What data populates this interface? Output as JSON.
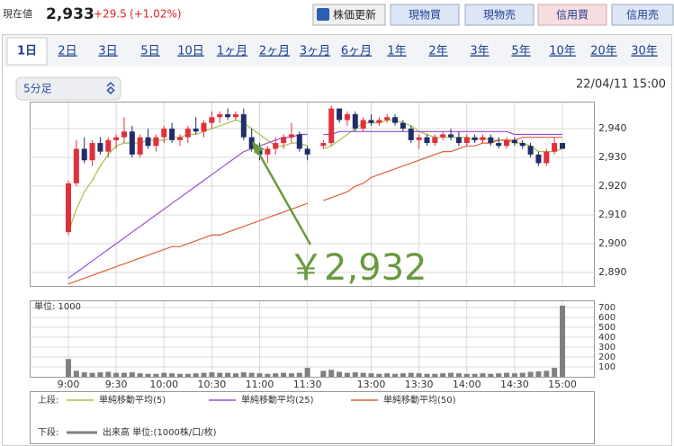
{
  "header": {
    "label": "現在値",
    "price": "2,933",
    "change": "+29.5",
    "change_pct": "(+1.02%)"
  },
  "buttons": [
    "株価更新",
    "現物買",
    "現物売",
    "信用買",
    "信用売"
  ],
  "tabs": [
    "1日",
    "2日",
    "3日",
    "5日",
    "10日",
    "1ヶ月",
    "2ヶ月",
    "3ヶ月",
    "6ヶ月",
    "1年",
    "2年",
    "3年",
    "5年",
    "10年",
    "20年",
    "30年"
  ],
  "interval": "5分足",
  "datetime": "22/04/11 15:00",
  "annotation": "￥2,932",
  "chart_data": [
    {
      "type": "candlestick",
      "legend_label": "上段:",
      "up_color": "#e0303c",
      "down_color": "#1f2d6b",
      "ylim": [
        2885.3,
        2949.4
      ],
      "yticks": [
        {
          "value": 2890,
          "label": "2,890"
        },
        {
          "value": 2900,
          "label": "2,900"
        },
        {
          "value": 2910,
          "label": "2,910"
        },
        {
          "value": 2920,
          "label": "2,920"
        },
        {
          "value": 2930,
          "label": "2,930"
        },
        {
          "value": 2940,
          "label": "2,940"
        }
      ],
      "open": [
        2904,
        2921,
        2933,
        2929,
        2935,
        2932,
        2936,
        2937,
        2939,
        2931,
        2937,
        2934,
        2937,
        2940,
        2936,
        2937,
        2940,
        2939,
        2942,
        2944,
        2945,
        2944,
        2945,
        2937,
        2933,
        2931,
        2933,
        2935,
        2937,
        2938,
        2933,
        null,
        2934,
        2935,
        2947,
        2943,
        2945,
        2940,
        2943,
        2942,
        2943,
        2944,
        2942,
        2940,
        2936,
        2937,
        2935,
        2937,
        2938,
        2937,
        2935,
        2937,
        2936,
        2937,
        2935,
        2934,
        2936,
        2935,
        2934,
        2931,
        2928,
        2932,
        2935
      ],
      "high": [
        2922,
        2936,
        2937,
        2936,
        2937,
        2937,
        2938,
        2944,
        2941,
        2938,
        2940,
        2938,
        2941,
        2942,
        2938,
        2941,
        2944,
        2943,
        2946,
        2946,
        2947,
        2946,
        2947,
        2940,
        2935,
        2934,
        2937,
        2938,
        2942,
        2939,
        2934,
        null,
        2936,
        2948,
        2947,
        2946,
        2946,
        2944,
        2945,
        2944,
        2945,
        2945,
        2943,
        2941,
        2938,
        2938,
        2938,
        2939,
        2940,
        2939,
        2938,
        2938,
        2938,
        2938,
        2937,
        2937,
        2937,
        2936,
        2935,
        2932,
        2933,
        2937,
        2935
      ],
      "low": [
        2903,
        2920,
        2928,
        2927,
        2931,
        2930,
        2933,
        2935,
        2930,
        2930,
        2933,
        2932,
        2935,
        2935,
        2934,
        2935,
        2938,
        2937,
        2940,
        2942,
        2943,
        2943,
        2936,
        2932,
        2929,
        2928,
        2931,
        2933,
        2935,
        2932,
        2929,
        null,
        2933,
        2934,
        2942,
        2941,
        2939,
        2939,
        2941,
        2941,
        2942,
        2941,
        2939,
        2935,
        2933,
        2934,
        2934,
        2936,
        2936,
        2934,
        2934,
        2935,
        2935,
        2934,
        2933,
        2933,
        2934,
        2933,
        2930,
        2927,
        2927,
        2931,
        2933
      ],
      "close": [
        2921,
        2933,
        2929,
        2935,
        2932,
        2936,
        2937,
        2939,
        2931,
        2937,
        2934,
        2937,
        2940,
        2936,
        2937,
        2940,
        2939,
        2942,
        2944,
        2945,
        2944,
        2945,
        2937,
        2933,
        2931,
        2933,
        2935,
        2937,
        2938,
        2933,
        2931,
        null,
        2935,
        2947,
        2943,
        2945,
        2940,
        2943,
        2942,
        2943,
        2944,
        2942,
        2940,
        2936,
        2937,
        2935,
        2937,
        2938,
        2937,
        2935,
        2937,
        2936,
        2937,
        2935,
        2934,
        2936,
        2935,
        2934,
        2931,
        2928,
        2932,
        2935,
        2933
      ],
      "series": [
        {
          "name": "単純移動平均(5)",
          "color": "#a3c24a",
          "values": [
            2904,
            2912,
            2918,
            2922,
            2927,
            2931,
            2934,
            2935,
            2935,
            2935,
            2936,
            2936,
            2936,
            2937,
            2937,
            2938,
            2938,
            2939,
            2940,
            2941,
            2942,
            2943,
            2942,
            2940,
            2938,
            2936,
            2934,
            2934,
            2935,
            2935,
            2934,
            null,
            2933,
            2934,
            2936,
            2938,
            2940,
            2942,
            2942,
            2942,
            2943,
            2943,
            2942,
            2941,
            2939,
            2938,
            2937,
            2937,
            2937,
            2937,
            2937,
            2936,
            2937,
            2936,
            2936,
            2936,
            2935,
            2935,
            2934,
            2932,
            2932,
            2932,
            2933
          ]
        },
        {
          "name": "単純移動平均(25)",
          "color": "#9a4fd2",
          "values": [
            2888,
            2890,
            2892,
            2894,
            2896,
            2898,
            2900,
            2902,
            2904,
            2906,
            2908,
            2910,
            2912,
            2914,
            2916,
            2918,
            2920,
            2922,
            2924,
            2926,
            2928,
            2930,
            2932,
            2933,
            2934,
            2935,
            2936,
            2937,
            2937,
            2938,
            2938,
            null,
            2938,
            2938,
            2939,
            2939,
            2939,
            2939,
            2939,
            2939,
            2939,
            2939,
            2939,
            2939,
            2939,
            2939,
            2939,
            2939,
            2939,
            2939,
            2939,
            2939,
            2939,
            2939,
            2939,
            2939,
            2938,
            2938,
            2938,
            2938,
            2938,
            2938,
            2938
          ]
        },
        {
          "name": "単純移動平均(50)",
          "color": "#e0603a",
          "values": [
            2886,
            2887,
            2888,
            2889,
            2890,
            2891,
            2892,
            2893,
            2894,
            2895,
            2896,
            2897,
            2898,
            2899,
            2899,
            2900,
            2901,
            2902,
            2903,
            2903,
            2904,
            2905,
            2906,
            2907,
            2908,
            2909,
            2910,
            2911,
            2912,
            2913,
            2914,
            null,
            2915,
            2916,
            2917,
            2918,
            2920,
            2921,
            2923,
            2924,
            2925,
            2926,
            2927,
            2928,
            2929,
            2930,
            2931,
            2932,
            2932,
            2933,
            2934,
            2934,
            2935,
            2935,
            2936,
            2936,
            2936,
            2937,
            2937,
            2937,
            2937,
            2937,
            2937
          ]
        }
      ]
    },
    {
      "type": "bar",
      "legend_label": "下段:",
      "unit_label": "単位: 1000",
      "name": "出来高 単位:(1000株/口/枚)",
      "color": "#808080",
      "ylim": [
        0,
        773
      ],
      "yticks": [
        100,
        200,
        300,
        400,
        500,
        600,
        700
      ],
      "categories": [
        "9:00",
        null,
        null,
        null,
        null,
        null,
        "9:30",
        null,
        null,
        null,
        null,
        null,
        "10:00",
        null,
        null,
        null,
        null,
        null,
        "10:30",
        null,
        null,
        null,
        null,
        null,
        "11:00",
        null,
        null,
        null,
        null,
        null,
        "11:30",
        null,
        null,
        null,
        null,
        null,
        null,
        null,
        "13:00",
        null,
        null,
        null,
        null,
        null,
        "13:30",
        null,
        null,
        null,
        null,
        null,
        "14:00",
        null,
        null,
        null,
        null,
        null,
        "14:30",
        null,
        null,
        null,
        null,
        null,
        "15:00"
      ],
      "values": [
        180,
        60,
        45,
        40,
        45,
        50,
        40,
        40,
        45,
        35,
        30,
        30,
        40,
        35,
        30,
        30,
        35,
        40,
        45,
        40,
        40,
        35,
        45,
        40,
        35,
        30,
        35,
        40,
        35,
        40,
        90,
        null,
        60,
        70,
        50,
        40,
        45,
        40,
        35,
        30,
        35,
        30,
        35,
        40,
        35,
        30,
        30,
        35,
        40,
        35,
        30,
        30,
        35,
        30,
        35,
        40,
        35,
        40,
        50,
        55,
        60,
        90,
        720
      ]
    }
  ]
}
